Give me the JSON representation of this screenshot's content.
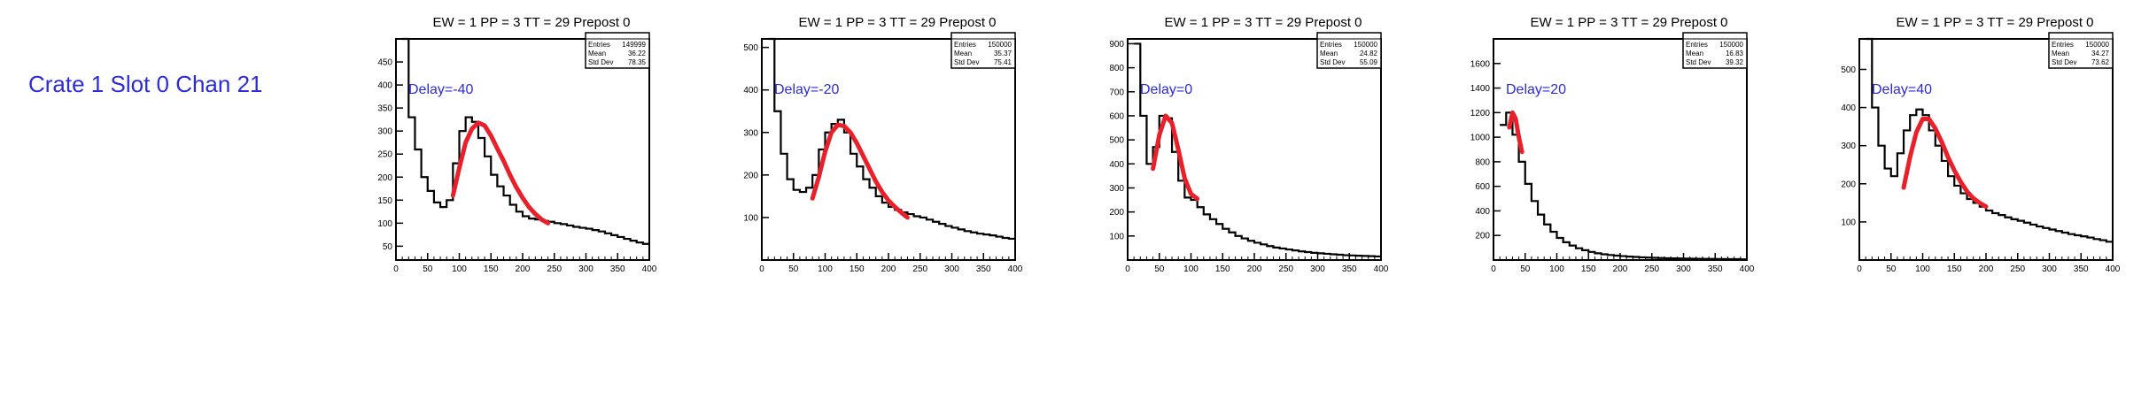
{
  "side_label": "Crate 1 Slot 0 Chan 21",
  "chart_data": [
    {
      "type": "histogram",
      "title": "EW = 1 PP = 3 TT = 29 Prepost 0",
      "annotation": "Delay=-40",
      "stats": {
        "entries_label": "Entries",
        "entries": "149999",
        "mean_label": "Mean",
        "mean": "36.22",
        "stddev_label": "Std Dev",
        "stddev": "78.35"
      },
      "xlim": [
        0,
        400
      ],
      "ylim": [
        20,
        500
      ],
      "xticks": [
        0,
        50,
        100,
        150,
        200,
        250,
        300,
        350,
        400
      ],
      "yticks": [
        50,
        100,
        150,
        200,
        250,
        300,
        350,
        400,
        450
      ],
      "x": [
        20,
        30,
        40,
        50,
        60,
        70,
        80,
        90,
        100,
        110,
        120,
        130,
        140,
        150,
        160,
        170,
        180,
        190,
        200,
        210,
        220,
        230,
        240,
        250,
        260,
        270,
        280,
        290,
        300,
        310,
        320,
        330,
        340,
        350,
        360,
        370,
        380,
        390,
        400
      ],
      "y": [
        500,
        330,
        260,
        200,
        170,
        145,
        135,
        150,
        230,
        300,
        330,
        320,
        285,
        245,
        205,
        180,
        160,
        140,
        125,
        115,
        110,
        108,
        105,
        103,
        100,
        98,
        95,
        92,
        90,
        88,
        85,
        82,
        78,
        74,
        70,
        66,
        62,
        58,
        55
      ],
      "fit_x": [
        90,
        100,
        110,
        120,
        130,
        140,
        150,
        160,
        170,
        180,
        190,
        200,
        210,
        220,
        230,
        240
      ],
      "fit_y": [
        160,
        220,
        275,
        305,
        318,
        312,
        290,
        262,
        235,
        205,
        178,
        155,
        135,
        120,
        108,
        100
      ]
    },
    {
      "type": "histogram",
      "title": "EW = 1 PP = 3 TT = 29 Prepost 0",
      "annotation": "Delay=-20",
      "stats": {
        "entries_label": "Entries",
        "entries": "150000",
        "mean_label": "Mean",
        "mean": "35.37",
        "stddev_label": "Std Dev",
        "stddev": "75.41"
      },
      "xlim": [
        0,
        400
      ],
      "ylim": [
        0,
        520
      ],
      "xticks": [
        0,
        50,
        100,
        150,
        200,
        250,
        300,
        350,
        400
      ],
      "yticks": [
        100,
        200,
        300,
        400,
        500
      ],
      "x": [
        20,
        30,
        40,
        50,
        60,
        70,
        80,
        90,
        100,
        110,
        120,
        130,
        140,
        150,
        160,
        170,
        180,
        190,
        200,
        210,
        220,
        230,
        240,
        250,
        260,
        270,
        280,
        290,
        300,
        310,
        320,
        330,
        340,
        350,
        360,
        370,
        380,
        390,
        400
      ],
      "y": [
        520,
        350,
        250,
        190,
        165,
        160,
        170,
        200,
        260,
        300,
        320,
        330,
        300,
        250,
        220,
        190,
        170,
        150,
        135,
        125,
        118,
        112,
        108,
        103,
        100,
        95,
        90,
        85,
        80,
        76,
        72,
        68,
        65,
        62,
        60,
        58,
        55,
        52,
        50
      ],
      "fit_x": [
        80,
        90,
        100,
        110,
        120,
        130,
        140,
        150,
        160,
        170,
        180,
        190,
        200,
        210,
        220,
        230
      ],
      "fit_y": [
        145,
        195,
        255,
        300,
        318,
        315,
        300,
        275,
        245,
        215,
        185,
        160,
        140,
        125,
        112,
        100
      ]
    },
    {
      "type": "histogram",
      "title": "EW = 1 PP = 3 TT = 29 Prepost 0",
      "annotation": "Delay=0",
      "stats": {
        "entries_label": "Entries",
        "entries": "150000",
        "mean_label": "Mean",
        "mean": "24.82",
        "stddev_label": "Std Dev",
        "stddev": "55.09"
      },
      "xlim": [
        0,
        400
      ],
      "ylim": [
        0,
        920
      ],
      "xticks": [
        0,
        50,
        100,
        150,
        200,
        250,
        300,
        350,
        400
      ],
      "yticks": [
        100,
        200,
        300,
        400,
        500,
        600,
        700,
        800,
        900
      ],
      "x": [
        20,
        30,
        40,
        50,
        60,
        70,
        80,
        90,
        100,
        110,
        120,
        130,
        140,
        150,
        160,
        170,
        180,
        190,
        200,
        210,
        220,
        230,
        240,
        250,
        260,
        270,
        280,
        290,
        300,
        310,
        320,
        330,
        340,
        350,
        360,
        370,
        380,
        390,
        400
      ],
      "y": [
        900,
        600,
        400,
        470,
        600,
        590,
        450,
        330,
        260,
        250,
        220,
        190,
        170,
        150,
        130,
        115,
        100,
        90,
        80,
        72,
        65,
        58,
        52,
        48,
        44,
        40,
        36,
        33,
        30,
        28,
        26,
        24,
        22,
        20,
        19,
        18,
        17,
        16,
        15
      ],
      "fit_x": [
        40,
        50,
        60,
        70,
        80,
        90,
        100,
        110
      ],
      "fit_y": [
        380,
        520,
        600,
        570,
        460,
        340,
        275,
        255
      ]
    },
    {
      "type": "histogram",
      "title": "EW = 1 PP = 3 TT = 29 Prepost 0",
      "annotation": "Delay=20",
      "stats": {
        "entries_label": "Entries",
        "entries": "150000",
        "mean_label": "Mean",
        "mean": "16.83",
        "stddev_label": "Std Dev",
        "stddev": "39.32"
      },
      "xlim": [
        0,
        400
      ],
      "ylim": [
        0,
        1800
      ],
      "xticks": [
        0,
        50,
        100,
        150,
        200,
        250,
        300,
        350,
        400
      ],
      "yticks": [
        200,
        400,
        600,
        800,
        1000,
        1200,
        1400,
        1600
      ],
      "x": [
        20,
        30,
        40,
        50,
        60,
        70,
        80,
        90,
        100,
        110,
        120,
        130,
        140,
        150,
        160,
        170,
        180,
        190,
        200,
        210,
        220,
        230,
        240,
        250,
        260,
        270,
        280,
        290,
        300,
        310,
        320,
        330,
        340,
        350,
        360,
        370,
        380,
        390,
        400
      ],
      "y": [
        1100,
        1200,
        1020,
        800,
        620,
        480,
        370,
        290,
        230,
        180,
        145,
        118,
        96,
        80,
        66,
        55,
        47,
        41,
        36,
        32,
        28,
        25,
        22,
        20,
        18,
        16,
        15,
        14,
        13,
        12,
        11,
        10,
        9,
        9,
        8,
        8,
        7,
        7,
        6
      ],
      "fit_x": [
        25,
        30,
        35,
        40,
        45
      ],
      "fit_y": [
        1080,
        1200,
        1150,
        1000,
        880
      ]
    },
    {
      "type": "histogram",
      "title": "EW = 1 PP = 3 TT = 29 Prepost 0",
      "annotation": "Delay=40",
      "stats": {
        "entries_label": "Entries",
        "entries": "150000",
        "mean_label": "Mean",
        "mean": "34.27",
        "stddev_label": "Std Dev",
        "stddev": "73.62"
      },
      "xlim": [
        0,
        400
      ],
      "ylim": [
        0,
        580
      ],
      "xticks": [
        0,
        50,
        100,
        150,
        200,
        250,
        300,
        350,
        400
      ],
      "yticks": [
        100,
        200,
        300,
        400,
        500
      ],
      "x": [
        20,
        30,
        40,
        50,
        60,
        70,
        80,
        90,
        100,
        110,
        120,
        130,
        140,
        150,
        160,
        170,
        180,
        190,
        200,
        210,
        220,
        230,
        240,
        250,
        260,
        270,
        280,
        290,
        300,
        310,
        320,
        330,
        340,
        350,
        360,
        370,
        380,
        390,
        400
      ],
      "y": [
        580,
        400,
        300,
        240,
        220,
        280,
        340,
        380,
        395,
        380,
        340,
        300,
        260,
        220,
        195,
        175,
        160,
        150,
        140,
        130,
        123,
        118,
        112,
        107,
        103,
        98,
        93,
        88,
        84,
        80,
        76,
        72,
        68,
        65,
        62,
        59,
        55,
        52,
        48
      ],
      "fit_x": [
        70,
        80,
        90,
        100,
        110,
        120,
        130,
        140,
        150,
        160,
        170,
        180,
        190,
        200
      ],
      "fit_y": [
        190,
        270,
        335,
        370,
        370,
        345,
        310,
        270,
        235,
        205,
        180,
        162,
        150,
        140
      ]
    }
  ]
}
